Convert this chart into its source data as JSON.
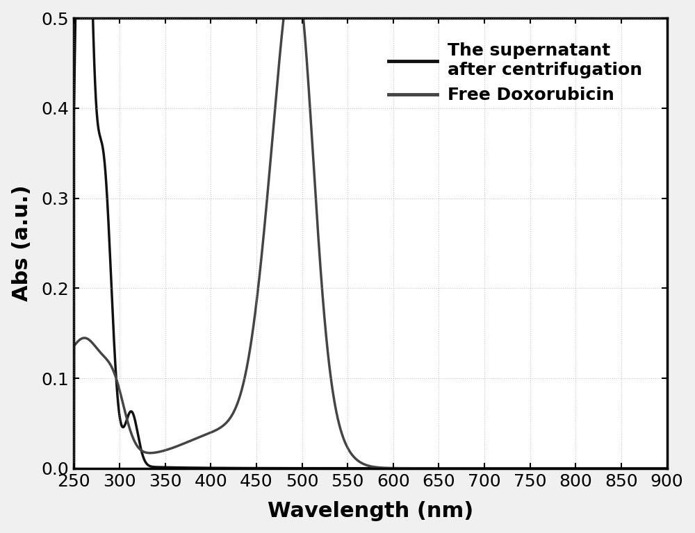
{
  "xlabel": "Wavelength (nm)",
  "ylabel": "Abs (a.u.)",
  "xlim": [
    250,
    900
  ],
  "ylim": [
    0.0,
    0.5
  ],
  "xticks": [
    250,
    300,
    350,
    400,
    450,
    500,
    550,
    600,
    650,
    700,
    750,
    800,
    850,
    900
  ],
  "yticks": [
    0.0,
    0.1,
    0.2,
    0.3,
    0.4,
    0.5
  ],
  "line1_color": "#111111",
  "line2_color": "#444444",
  "line1_label": "The supernatant\nafter centrifugation",
  "line2_label": "Free Doxorubicin",
  "line_width": 2.5,
  "xlabel_fontsize": 22,
  "ylabel_fontsize": 22,
  "tick_fontsize": 18,
  "legend_fontsize": 18
}
